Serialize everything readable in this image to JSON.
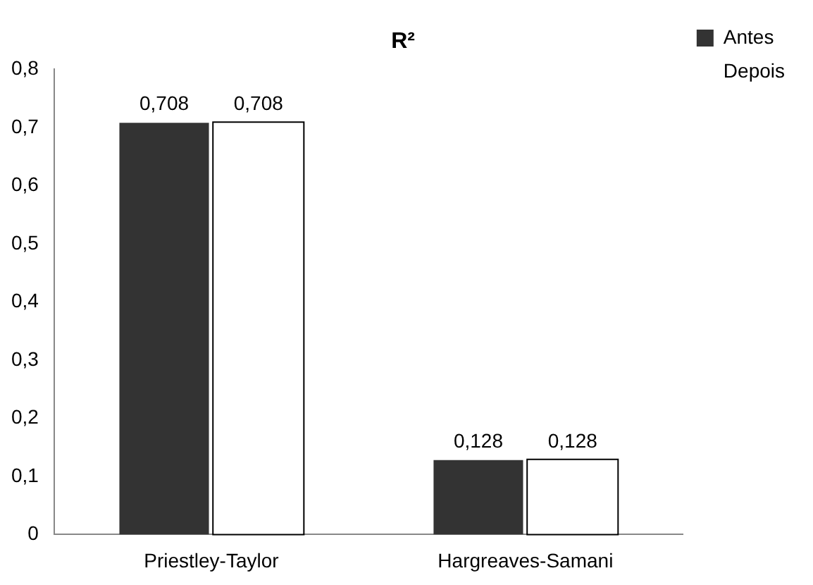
{
  "chart_data": {
    "type": "bar",
    "title": "R²",
    "categories": [
      "Priestley-Taylor",
      "Hargreaves-Samani"
    ],
    "series": [
      {
        "name": "Antes",
        "color": "#333333",
        "values": [
          0.708,
          0.128
        ],
        "value_labels": [
          "0,708",
          "0,128"
        ]
      },
      {
        "name": "Depois",
        "color": "#ffffff",
        "values": [
          0.708,
          0.128
        ],
        "value_labels": [
          "0,708",
          "0,128"
        ]
      }
    ],
    "ylim": [
      0,
      0.8
    ],
    "yticks": [
      0,
      {
        "value": 0.1,
        "label": "0,1"
      },
      {
        "value": 0.2,
        "label": "0,2"
      },
      {
        "value": 0.3,
        "label": "0,3"
      },
      {
        "value": 0.4,
        "label": "0,4"
      },
      {
        "value": 0.5,
        "label": "0,5"
      },
      {
        "value": 0.6,
        "label": "0,6"
      },
      {
        "value": 0.7,
        "label": "0,7"
      },
      {
        "value": 0.8,
        "label": "0,8"
      }
    ],
    "grid": false,
    "legend": "top right"
  }
}
